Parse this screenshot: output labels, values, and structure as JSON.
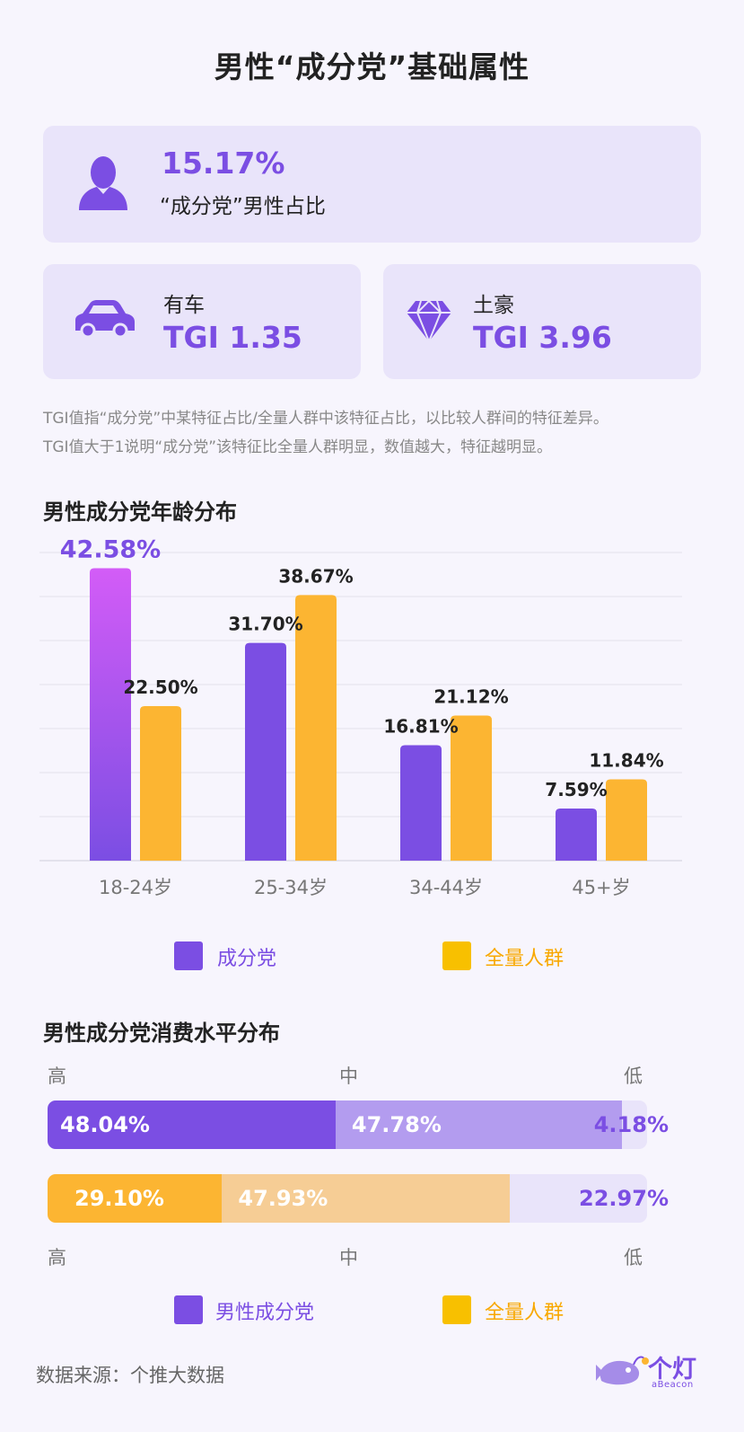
{
  "title": "男性“成分党”基础属性",
  "share_card": {
    "value": "15.17%",
    "label": "“成分党”男性占比",
    "icon": "person-icon"
  },
  "car_card": {
    "label": "有车",
    "value": "TGI 1.35",
    "icon": "car-icon"
  },
  "rich_card": {
    "label": "土豪",
    "value": "TGI 3.96",
    "icon": "diamond-icon"
  },
  "note_lines": [
    "TGI值指“成分党”中某特征占比/全量人群中该特征占比，以比较人群间的特征差异。",
    "TGI值大于1说明“成分党”该特征比全量人群明显，数值越大，特征越明显。"
  ],
  "age_section_title": "男性成分党年龄分布",
  "spending_section_title": "男性成分党消费水平分布",
  "colors": {
    "purple": "#7b4ee3",
    "purple_light": "#b39cef",
    "purple_pale": "#e9e4fa",
    "gradient_top": "#d35cf7",
    "orange": "#fcb532",
    "orange_light": "#f6cd95",
    "legend_orange": "#f8c000"
  },
  "chart_data": [
    {
      "type": "bar",
      "categories": [
        "18-24岁",
        "25-34岁",
        "34-44岁",
        "45+岁"
      ],
      "series": [
        {
          "name": "成分党",
          "values": [
            42.58,
            31.7,
            16.81,
            7.59
          ],
          "labels": [
            "42.58%",
            "31.70%",
            "16.81%",
            "7.59%"
          ]
        },
        {
          "name": "全量人群",
          "values": [
            22.5,
            38.67,
            21.12,
            11.84
          ],
          "labels": [
            "22.50%",
            "38.67%",
            "21.12%",
            "11.84%"
          ]
        }
      ],
      "ylim": [
        0,
        45
      ],
      "grid": true,
      "legend": "bottom"
    },
    {
      "type": "bar",
      "stacked": true,
      "horizontal": true,
      "categories": [
        "高",
        "中",
        "低"
      ],
      "series": [
        {
          "name": "男性成分党",
          "values": [
            48.04,
            47.78,
            4.18
          ],
          "labels": [
            "48.04%",
            "47.78%",
            "4.18%"
          ]
        },
        {
          "name": "全量人群",
          "values": [
            29.1,
            47.93,
            22.97
          ],
          "labels": [
            "29.10%",
            "47.93%",
            "22.97%"
          ]
        }
      ],
      "xlim": [
        0,
        100
      ],
      "legend": "bottom"
    }
  ],
  "source": "数据来源：个推大数据",
  "logo": {
    "name": "个灯",
    "sub": "aBeacon",
    "icon": "anglerfish-icon"
  }
}
